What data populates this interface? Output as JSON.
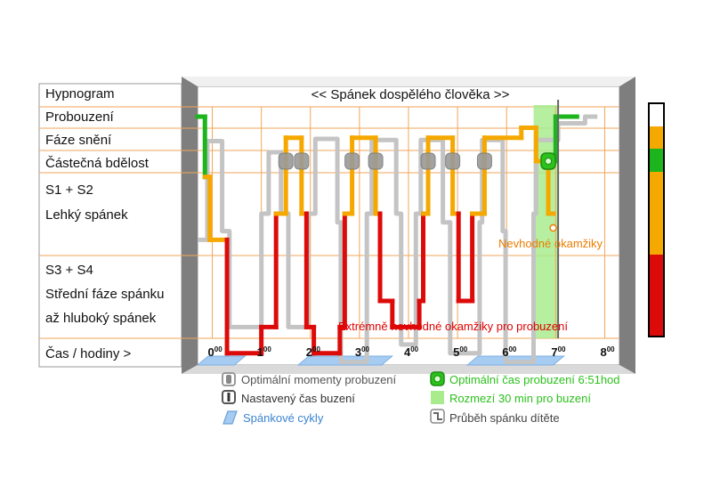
{
  "chart_data": {
    "type": "line",
    "title": "<< Spánek dospělého člověka >>",
    "row_labels": {
      "hypnogram": "Hypnogram",
      "probuzeni": "Probouzení",
      "snění": "Fáze snění",
      "bdelost": "Částečná bdělost",
      "s12": "S1 + S2",
      "lehky": "Lehký spánek",
      "s34": "S3 + S4",
      "stredni": "Střední fáze spánku",
      "hluboky": "až hluboký spánek",
      "cas": "Čas / hodiny >"
    },
    "stages": [
      "Probouzení",
      "Fáze snění",
      "Částečná bdělost",
      "S1 + S2",
      "S3 + S4"
    ],
    "x_ticks": [
      {
        "base": "0",
        "sup": "00",
        "value": 0
      },
      {
        "base": "1",
        "sup": "00",
        "value": 1
      },
      {
        "base": "2",
        "sup": "00",
        "value": 2
      },
      {
        "base": "3",
        "sup": "00",
        "value": 3
      },
      {
        "base": "4",
        "sup": "00",
        "value": 4
      },
      {
        "base": "5",
        "sup": "00",
        "value": 5
      },
      {
        "base": "6",
        "sup": "00",
        "value": 6
      },
      {
        "base": "7",
        "sup": "00",
        "value": 7
      },
      {
        "base": "8",
        "sup": "00",
        "value": 8
      }
    ],
    "xlim": [
      -0.3,
      8.3
    ],
    "adult_sleep": [
      [
        -0.3,
        0.0
      ],
      [
        -0.15,
        0.0
      ],
      [
        -0.15,
        2.3
      ],
      [
        -0.05,
        2.3
      ],
      [
        -0.05,
        3.3
      ],
      [
        0.3,
        3.3
      ],
      [
        0.3,
        4.6
      ],
      [
        1.0,
        4.6
      ],
      [
        1.0,
        4.3
      ],
      [
        1.3,
        4.3
      ],
      [
        1.3,
        3.0
      ],
      [
        1.5,
        3.0
      ],
      [
        1.5,
        0.95
      ],
      [
        1.82,
        0.95
      ],
      [
        1.82,
        3.0
      ],
      [
        1.92,
        3.0
      ],
      [
        1.92,
        4.3
      ],
      [
        2.07,
        4.3
      ],
      [
        2.07,
        4.6
      ],
      [
        2.6,
        4.6
      ],
      [
        2.6,
        4.3
      ],
      [
        2.7,
        4.3
      ],
      [
        2.7,
        3.0
      ],
      [
        2.85,
        3.0
      ],
      [
        2.85,
        0.95
      ],
      [
        3.33,
        0.95
      ],
      [
        3.33,
        3.0
      ],
      [
        3.42,
        3.0
      ],
      [
        3.42,
        4.0
      ],
      [
        3.67,
        4.0
      ],
      [
        3.67,
        4.3
      ],
      [
        4.22,
        4.3
      ],
      [
        4.22,
        4.0
      ],
      [
        4.3,
        4.0
      ],
      [
        4.3,
        3.0
      ],
      [
        4.4,
        3.0
      ],
      [
        4.4,
        0.95
      ],
      [
        4.9,
        0.95
      ],
      [
        4.9,
        3.0
      ],
      [
        5.02,
        3.0
      ],
      [
        5.02,
        4.0
      ],
      [
        5.3,
        4.0
      ],
      [
        5.3,
        3.0
      ],
      [
        5.55,
        3.0
      ],
      [
        5.55,
        0.95
      ],
      [
        6.3,
        0.95
      ],
      [
        6.3,
        0.5
      ],
      [
        6.6,
        0.5
      ],
      [
        6.6,
        2.0
      ],
      [
        6.85,
        2.0
      ],
      [
        6.85,
        3.0
      ],
      [
        6.95,
        3.0
      ]
    ],
    "adult_wake": [
      [
        6.95,
        2.0
      ],
      [
        7.0,
        2.0
      ],
      [
        7.0,
        0.0
      ],
      [
        7.48,
        0.0
      ]
    ],
    "child_sleep": [
      [
        -0.3,
        3.3
      ],
      [
        -0.1,
        3.3
      ],
      [
        -0.1,
        1.1
      ],
      [
        0.2,
        1.1
      ],
      [
        0.2,
        3.2
      ],
      [
        0.35,
        3.2
      ],
      [
        0.35,
        4.3
      ],
      [
        1.0,
        4.3
      ],
      [
        1.0,
        3.0
      ],
      [
        1.15,
        3.0
      ],
      [
        1.15,
        1.6
      ],
      [
        1.4,
        1.6
      ],
      [
        1.4,
        3.0
      ],
      [
        1.55,
        3.0
      ],
      [
        1.55,
        4.3
      ],
      [
        1.95,
        4.3
      ],
      [
        1.95,
        3.0
      ],
      [
        2.1,
        3.0
      ],
      [
        2.1,
        1.0
      ],
      [
        2.55,
        1.0
      ],
      [
        2.55,
        3.1
      ],
      [
        2.62,
        3.1
      ],
      [
        2.62,
        4.7
      ],
      [
        3.15,
        4.7
      ],
      [
        3.15,
        3.0
      ],
      [
        3.25,
        3.0
      ],
      [
        3.25,
        1.05
      ],
      [
        3.75,
        1.05
      ],
      [
        3.75,
        3.0
      ],
      [
        3.85,
        3.0
      ],
      [
        3.85,
        4.5
      ],
      [
        4.15,
        4.5
      ],
      [
        4.15,
        3.0
      ],
      [
        4.25,
        3.0
      ],
      [
        4.25,
        1.05
      ],
      [
        4.7,
        1.05
      ],
      [
        4.7,
        3.1
      ],
      [
        4.85,
        3.1
      ],
      [
        4.85,
        4.6
      ],
      [
        5.45,
        4.6
      ],
      [
        5.45,
        3.1
      ],
      [
        5.5,
        3.1
      ],
      [
        5.5,
        1.05
      ],
      [
        5.92,
        1.05
      ],
      [
        5.92,
        3.2
      ],
      [
        5.98,
        3.2
      ],
      [
        5.98,
        4.7
      ],
      [
        6.55,
        4.7
      ],
      [
        6.55,
        3.0
      ],
      [
        6.6,
        3.0
      ],
      [
        6.6,
        1.05
      ],
      [
        7.05,
        1.05
      ],
      [
        7.05,
        0.3
      ],
      [
        7.6,
        0.3
      ],
      [
        7.6,
        0.0
      ],
      [
        7.85,
        0.0
      ]
    ],
    "optimal_moments": [
      1.5,
      1.82,
      2.85,
      3.33,
      4.4,
      4.9,
      5.55
    ],
    "optimal_wake_time": 6.85,
    "window_start": 6.55,
    "window_end": 7.05,
    "alarm_time": 7.05,
    "bad_moment_time": 6.95,
    "annotation_bad": "Nevhodné okamžiky",
    "annotation_extreme": "Extrémně nevhodné okamžiky pro probuzení",
    "sleep_cycles": [
      [
        -0.3,
        0.45
      ],
      [
        1.75,
        3.45
      ],
      [
        5.2,
        6.95
      ]
    ],
    "colors": {
      "dream": "#F5A800",
      "waking": "#1DB51D",
      "deep": "#DD0A0A",
      "child": "#C4C4C4",
      "window": "#A8EC8E",
      "cycle": "#A6CCF2",
      "orange_text": "#EE7D00",
      "red_text": "#E20000",
      "grid": "#F2A65A"
    },
    "legend": [
      {
        "icon": "grey-pill-icon",
        "text": "Optimální momenty probuzení",
        "color": "#555555"
      },
      {
        "icon": "green-ring-icon",
        "text": "Optimální čas probuzení 6:51hod",
        "color": "#2CC11C"
      },
      {
        "icon": "alarm-marker-icon",
        "text": "Nastavený čas buzení",
        "color": "#333333"
      },
      {
        "icon": "green-box-icon",
        "text": "Rozmezí 30 min pro buzení",
        "color": "#2CC11C"
      },
      {
        "icon": "cycle-icon",
        "text": "Spánkové cykly",
        "color": "#3A83D1"
      },
      {
        "icon": "child-path-icon",
        "text": "Průběh spánku dítěte",
        "color": "#444444"
      }
    ]
  }
}
